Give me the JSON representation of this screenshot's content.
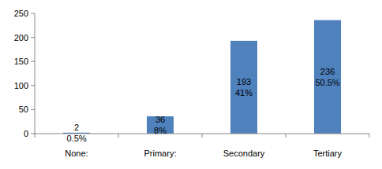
{
  "chart_data": {
    "type": "bar",
    "categories": [
      "None:",
      "Primary:",
      "Secondary",
      "Tertiary"
    ],
    "values": [
      2,
      36,
      193,
      236
    ],
    "percent_labels": [
      "0.5%",
      "8%",
      "41%",
      "50.5%"
    ],
    "color": "#4f81bd",
    "ylim": [
      0,
      250
    ],
    "yticks": [
      0,
      50,
      100,
      150,
      200,
      250
    ],
    "grid": false,
    "data_labels": true
  }
}
